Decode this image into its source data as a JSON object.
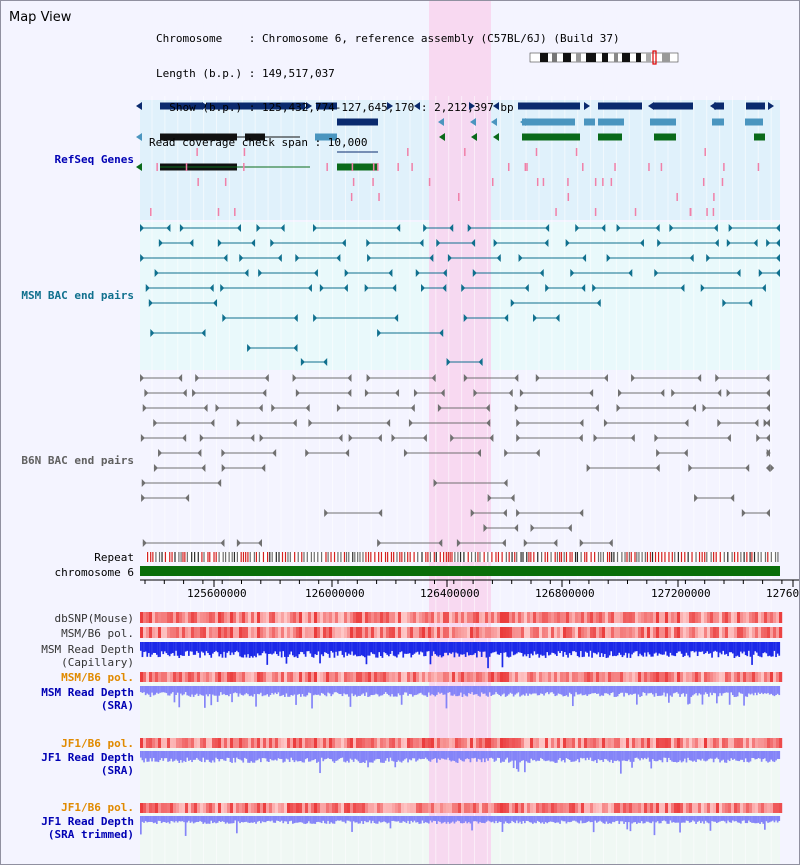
{
  "view_title": "Map View",
  "header": {
    "chromosome_line": "Chromosome    : Chromosome 6, reference assembly (C57BL/6J) (Build 37)",
    "length_line": "Length (b.p.) : 149,517,037",
    "show_line": "  Show (b.p.) : 125,432,774-127,645,170 : 2,212,397 bp",
    "coverage_line": "Read coverage check span : 10,000"
  },
  "ruler": {
    "ticks": [
      "125600000",
      "126000000",
      "126400000",
      "126800000",
      "127200000",
      "12760"
    ]
  },
  "tracks": {
    "refseq_genes": "RefSeq Genes",
    "msm_bac": "MSM BAC end pairs",
    "b6n_bac": "B6N BAC end pairs",
    "repeat": "Repeat",
    "chromosome": "chromosome 6",
    "dbsnp": "dbSNP(Mouse)",
    "msm_b6_pol": "MSM/B6 pol.",
    "msm_read_depth_cap_1": "MSM Read Depth",
    "msm_read_depth_cap_2": "(Capillary)",
    "msm_b6_pol_sra": "MSM/B6 pol.",
    "msm_read_depth_sra_1": "MSM Read Depth",
    "msm_read_depth_sra_2": "(SRA)",
    "jf1_b6_pol_1": "JF1/B6 pol.",
    "jf1_read_depth_sra_1": "JF1 Read Depth",
    "jf1_read_depth_sra_2": "(SRA)",
    "jf1_b6_pol_2": "JF1/B6 pol.",
    "jf1_read_depth_trim_1": "JF1 Read Depth",
    "jf1_read_depth_trim_2": "(SRA trimmed)"
  },
  "colors": {
    "background": "#f4f4ff",
    "refseq_band": "#dcf0fa",
    "bac_band": "#e6fafa",
    "highlight": "#f8d8f0",
    "gene_dark": "#0a2a6e",
    "gene_mid": "#4a95bf",
    "gene_green": "#0a6a1a",
    "msm_teal": "#10708e",
    "b6n_gray": "#707070",
    "chromosome_bar": "#0a6e0a",
    "snp_red": "#f05050",
    "depth_blue": "#1c28e8",
    "sra_blue": "#8484f8",
    "label_blue": "#0000b4",
    "label_teal": "#10708e",
    "label_orange": "#e08a00"
  }
}
